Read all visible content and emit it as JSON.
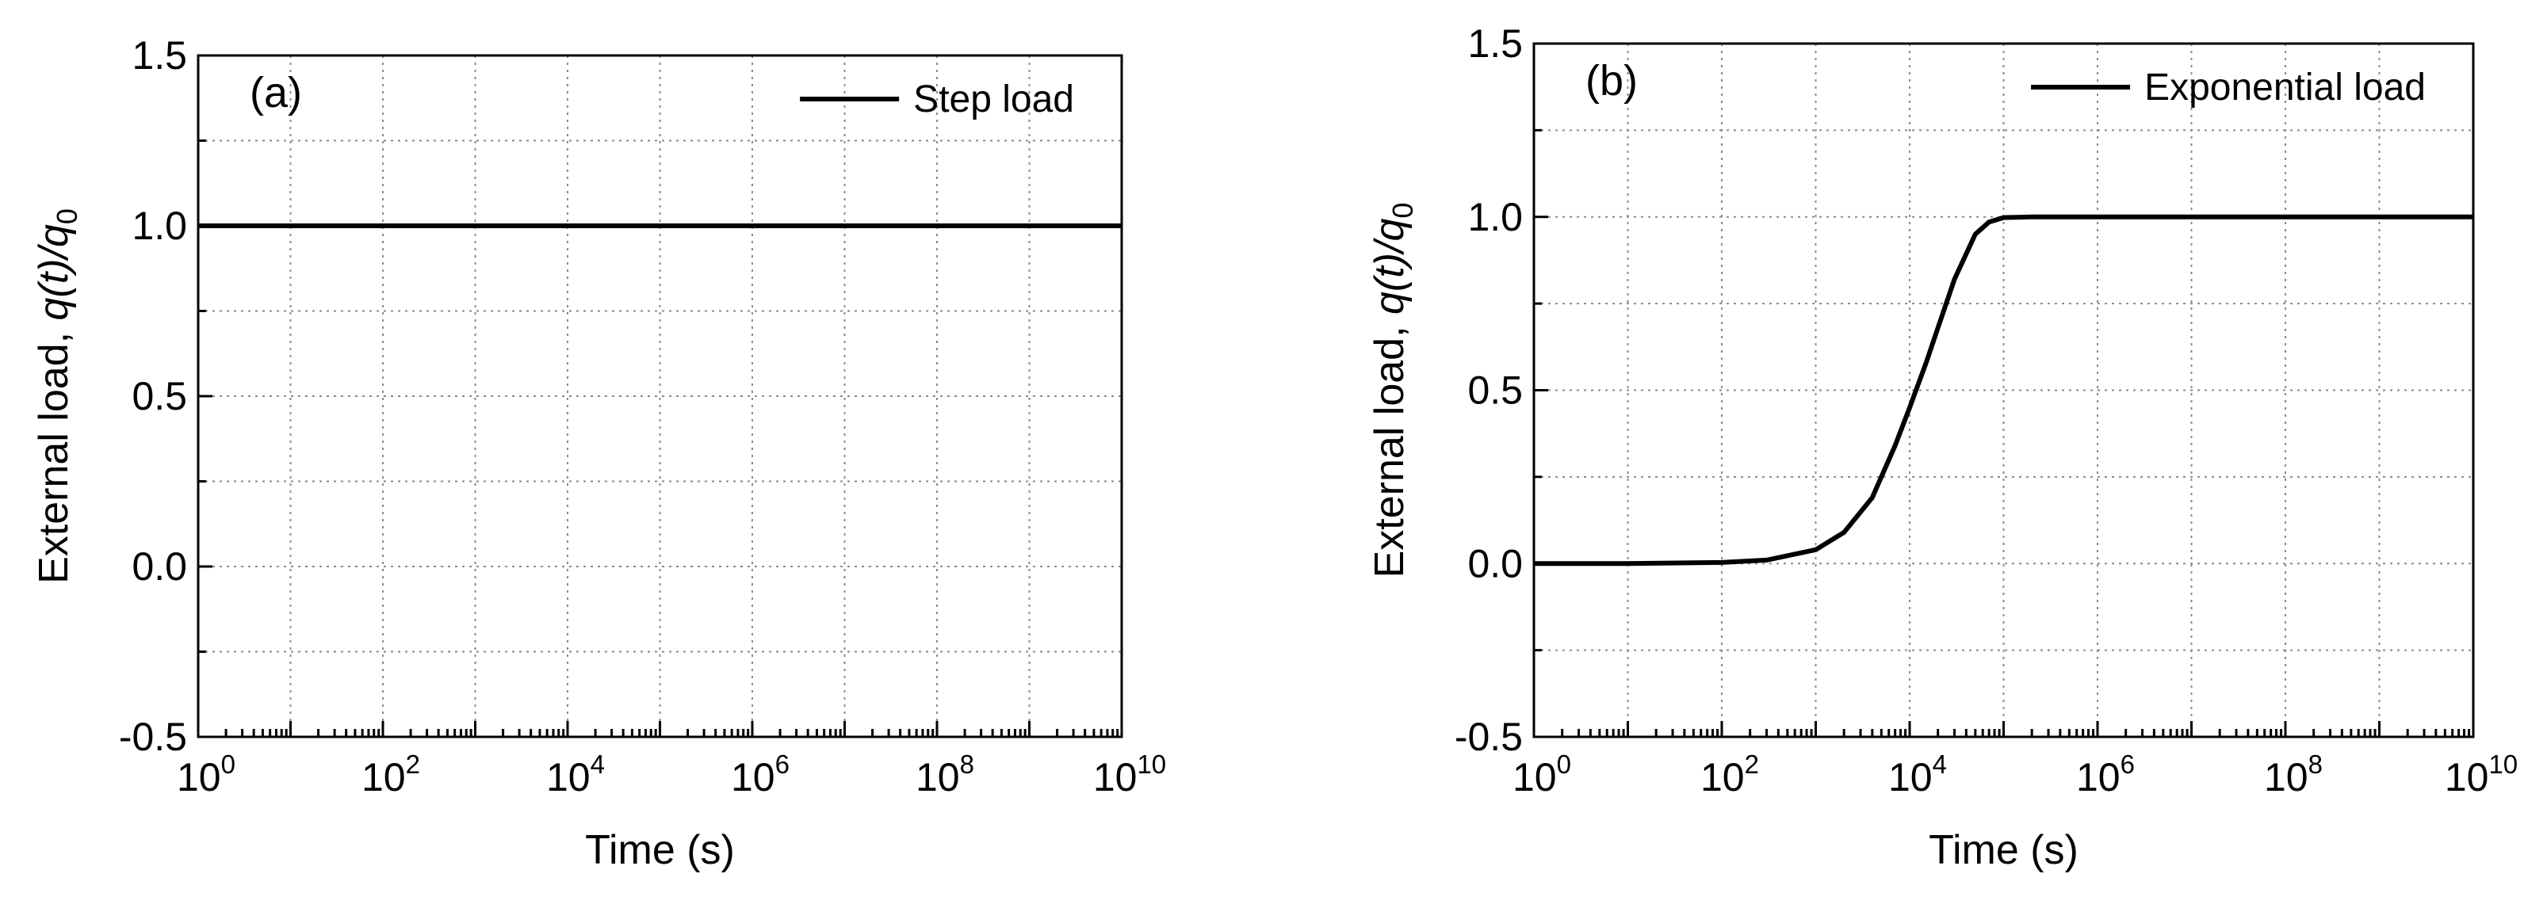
{
  "chart_data": [
    {
      "type": "line",
      "panel_label": "(a)",
      "xlabel": "Time (s)",
      "ylabel": {
        "prefix": "External load, ",
        "expr": "q(t)/q",
        "sub": "0"
      },
      "x_scale": "log",
      "xlim": [
        1,
        10000000000
      ],
      "ylim": [
        -0.5,
        1.5
      ],
      "x_ticks": [
        {
          "base": "10",
          "exp": "0"
        },
        {
          "base": "10",
          "exp": "2"
        },
        {
          "base": "10",
          "exp": "4"
        },
        {
          "base": "10",
          "exp": "6"
        },
        {
          "base": "10",
          "exp": "8"
        },
        {
          "base": "10",
          "exp": "10"
        }
      ],
      "y_ticks": [
        "-0.5",
        "0.0",
        "0.5",
        "1.0",
        "1.5"
      ],
      "grid": true,
      "legend_position": "top-right",
      "series": [
        {
          "name": "Step load",
          "x": [
            1,
            10,
            100,
            1000,
            10000,
            100000,
            1000000,
            10000000,
            100000000,
            1000000000,
            10000000000
          ],
          "y": [
            1.0,
            1.0,
            1.0,
            1.0,
            1.0,
            1.0,
            1.0,
            1.0,
            1.0,
            1.0,
            1.0
          ]
        }
      ]
    },
    {
      "type": "line",
      "panel_label": "(b)",
      "xlabel": "Time (s)",
      "ylabel": {
        "prefix": "External load, ",
        "expr": "q(t)/q",
        "sub": "0"
      },
      "x_scale": "log",
      "xlim": [
        1,
        10000000000
      ],
      "ylim": [
        -0.5,
        1.5
      ],
      "x_ticks": [
        {
          "base": "10",
          "exp": "0"
        },
        {
          "base": "10",
          "exp": "2"
        },
        {
          "base": "10",
          "exp": "4"
        },
        {
          "base": "10",
          "exp": "6"
        },
        {
          "base": "10",
          "exp": "8"
        },
        {
          "base": "10",
          "exp": "10"
        }
      ],
      "y_ticks": [
        "-0.5",
        "0.0",
        "0.5",
        "1.0",
        "1.5"
      ],
      "grid": true,
      "legend_position": "top-right",
      "series": [
        {
          "name": "Exponential load",
          "x": [
            1,
            10,
            100,
            300,
            1000,
            2000,
            4000,
            7000,
            10000,
            15000,
            20000,
            30000,
            50000,
            70000,
            100000,
            200000,
            1000000,
            10000000,
            100000000,
            1000000000,
            10000000000
          ],
          "y": [
            0.0,
            0.0,
            0.003,
            0.01,
            0.04,
            0.09,
            0.19,
            0.34,
            0.45,
            0.58,
            0.68,
            0.82,
            0.95,
            0.985,
            0.998,
            1.0,
            1.0,
            1.0,
            1.0,
            1.0,
            1.0
          ]
        }
      ]
    }
  ]
}
